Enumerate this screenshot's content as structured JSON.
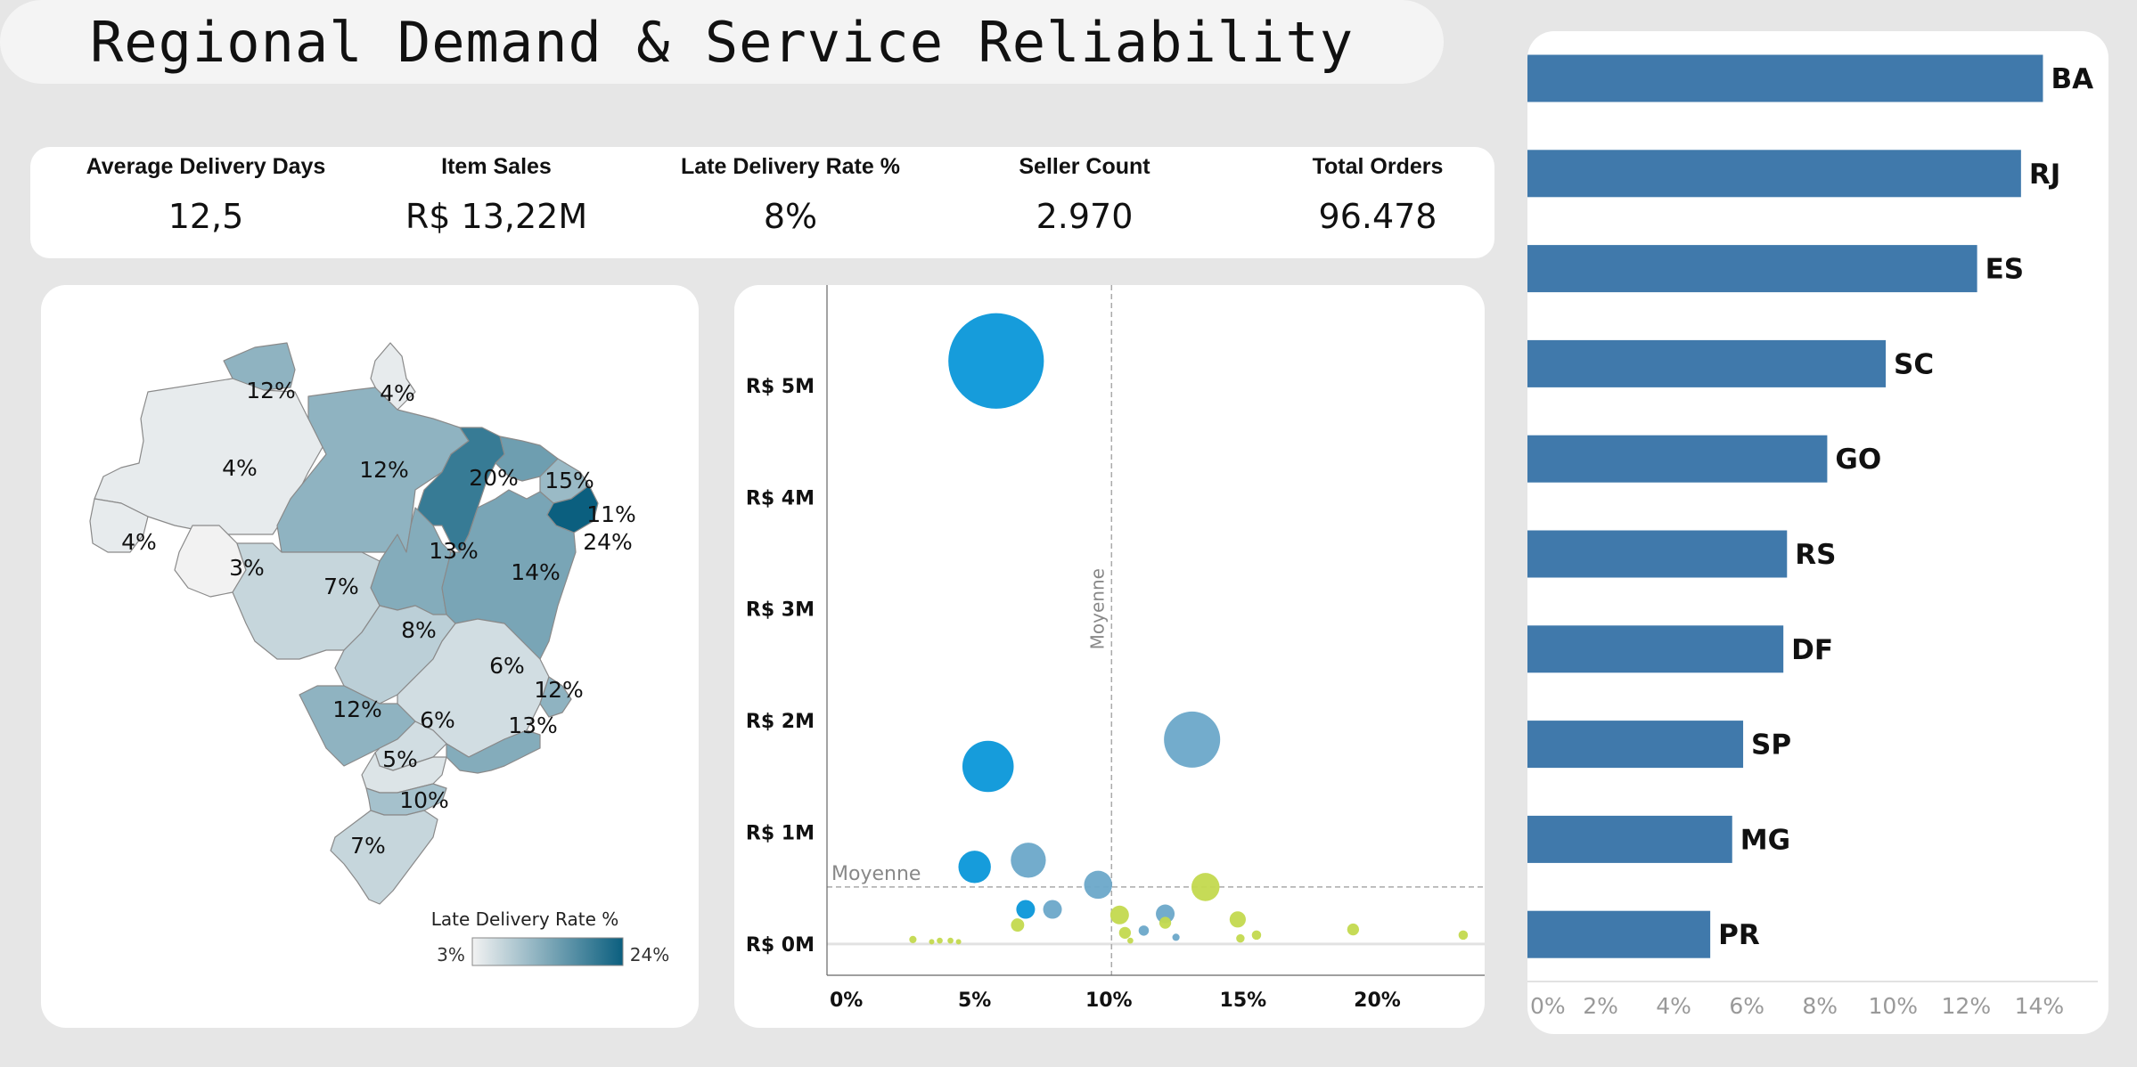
{
  "title": "Regional Demand & Service Reliability",
  "kpis": [
    {
      "label": "Average Delivery Days",
      "value": "12,5"
    },
    {
      "label": "Item Sales",
      "value": "R$ 13,22M"
    },
    {
      "label": "Late Delivery Rate %",
      "value": "8%"
    },
    {
      "label": "Seller Count",
      "value": "2.970"
    },
    {
      "label": "Total Orders",
      "value": "96.478"
    }
  ],
  "map": {
    "legend_title": "Late Delivery Rate %",
    "legend_min": "3%",
    "legend_max": "24%",
    "color_low": "#f2f2f2",
    "color_high": "#0b5f7f",
    "regions": [
      {
        "label": "12%",
        "rate": 12
      },
      {
        "label": "4%",
        "rate": 4
      },
      {
        "label": "4%",
        "rate": 4
      },
      {
        "label": "12%",
        "rate": 12
      },
      {
        "label": "20%",
        "rate": 20
      },
      {
        "label": "15%",
        "rate": 15
      },
      {
        "label": "11%",
        "rate": 11
      },
      {
        "label": "24%",
        "rate": 24
      },
      {
        "label": "4%",
        "rate": 4
      },
      {
        "label": "3%",
        "rate": 3
      },
      {
        "label": "13%",
        "rate": 13
      },
      {
        "label": "14%",
        "rate": 14
      },
      {
        "label": "7%",
        "rate": 7
      },
      {
        "label": "8%",
        "rate": 8
      },
      {
        "label": "6%",
        "rate": 6
      },
      {
        "label": "12%",
        "rate": 12
      },
      {
        "label": "12%",
        "rate": 12
      },
      {
        "label": "6%",
        "rate": 6
      },
      {
        "label": "13%",
        "rate": 13
      },
      {
        "label": "5%",
        "rate": 5
      },
      {
        "label": "10%",
        "rate": 10
      },
      {
        "label": "7%",
        "rate": 7
      }
    ]
  },
  "chart_data": [
    {
      "type": "scatter",
      "x_ticks": [
        "0%",
        "5%",
        "10%",
        "15%",
        "20%"
      ],
      "y_ticks": [
        "R$ 0M",
        "R$ 1M",
        "R$ 2M",
        "R$ 3M",
        "R$ 4M",
        "R$ 5M"
      ],
      "xlim": [
        -0.5,
        24
      ],
      "ylim": [
        -0.28,
        5.9
      ],
      "reference_lines": [
        {
          "axis": "x",
          "value": 10.1,
          "label": "Moyenne"
        },
        {
          "axis": "y",
          "value": 0.51,
          "label": "Moyenne"
        }
      ],
      "colors": {
        "blue": "#0a97d9",
        "steel": "#6ca8c9",
        "lime": "#c3d94e"
      },
      "points": [
        {
          "x": 5.8,
          "y": 5.22,
          "size": 5.2,
          "color": "blue"
        },
        {
          "x": 5.5,
          "y": 1.59,
          "size": 1.5,
          "color": "blue"
        },
        {
          "x": 13.1,
          "y": 1.83,
          "size": 1.8,
          "color": "steel"
        },
        {
          "x": 5.0,
          "y": 0.69,
          "size": 0.6,
          "color": "blue"
        },
        {
          "x": 7.0,
          "y": 0.75,
          "size": 0.7,
          "color": "steel"
        },
        {
          "x": 9.6,
          "y": 0.53,
          "size": 0.45,
          "color": "steel"
        },
        {
          "x": 13.6,
          "y": 0.51,
          "size": 0.45,
          "color": "lime"
        },
        {
          "x": 6.9,
          "y": 0.31,
          "size": 0.2,
          "color": "blue"
        },
        {
          "x": 7.9,
          "y": 0.31,
          "size": 0.2,
          "color": "steel"
        },
        {
          "x": 10.4,
          "y": 0.26,
          "size": 0.2,
          "color": "lime"
        },
        {
          "x": 12.1,
          "y": 0.27,
          "size": 0.2,
          "color": "steel"
        },
        {
          "x": 14.8,
          "y": 0.22,
          "size": 0.15,
          "color": "lime"
        },
        {
          "x": 6.6,
          "y": 0.17,
          "size": 0.1,
          "color": "lime"
        },
        {
          "x": 10.6,
          "y": 0.1,
          "size": 0.08,
          "color": "lime"
        },
        {
          "x": 11.3,
          "y": 0.12,
          "size": 0.06,
          "color": "steel"
        },
        {
          "x": 12.1,
          "y": 0.19,
          "size": 0.08,
          "color": "lime"
        },
        {
          "x": 12.5,
          "y": 0.06,
          "size": 0.03,
          "color": "steel"
        },
        {
          "x": 15.5,
          "y": 0.08,
          "size": 0.05,
          "color": "lime"
        },
        {
          "x": 14.9,
          "y": 0.05,
          "size": 0.04,
          "color": "lime"
        },
        {
          "x": 19.1,
          "y": 0.13,
          "size": 0.08,
          "color": "lime"
        },
        {
          "x": 23.2,
          "y": 0.08,
          "size": 0.05,
          "color": "lime"
        },
        {
          "x": 10.8,
          "y": 0.03,
          "size": 0.02,
          "color": "lime"
        },
        {
          "x": 2.7,
          "y": 0.04,
          "size": 0.03,
          "color": "lime"
        },
        {
          "x": 3.7,
          "y": 0.03,
          "size": 0.02,
          "color": "lime"
        },
        {
          "x": 4.1,
          "y": 0.03,
          "size": 0.02,
          "color": "lime"
        },
        {
          "x": 3.4,
          "y": 0.02,
          "size": 0.01,
          "color": "lime"
        },
        {
          "x": 4.4,
          "y": 0.02,
          "size": 0.01,
          "color": "lime"
        }
      ]
    },
    {
      "type": "bar",
      "orientation": "horizontal",
      "categories": [
        "BA",
        "RJ",
        "ES",
        "SC",
        "GO",
        "RS",
        "DF",
        "SP",
        "MG",
        "PR"
      ],
      "values": [
        14.1,
        13.5,
        12.3,
        9.8,
        8.2,
        7.1,
        7.0,
        5.9,
        5.6,
        5.0
      ],
      "x_ticks": [
        "0%",
        "2%",
        "4%",
        "6%",
        "8%",
        "10%",
        "12%",
        "14%"
      ],
      "xlim": [
        0,
        15.6
      ],
      "color": "#4079ab"
    }
  ]
}
